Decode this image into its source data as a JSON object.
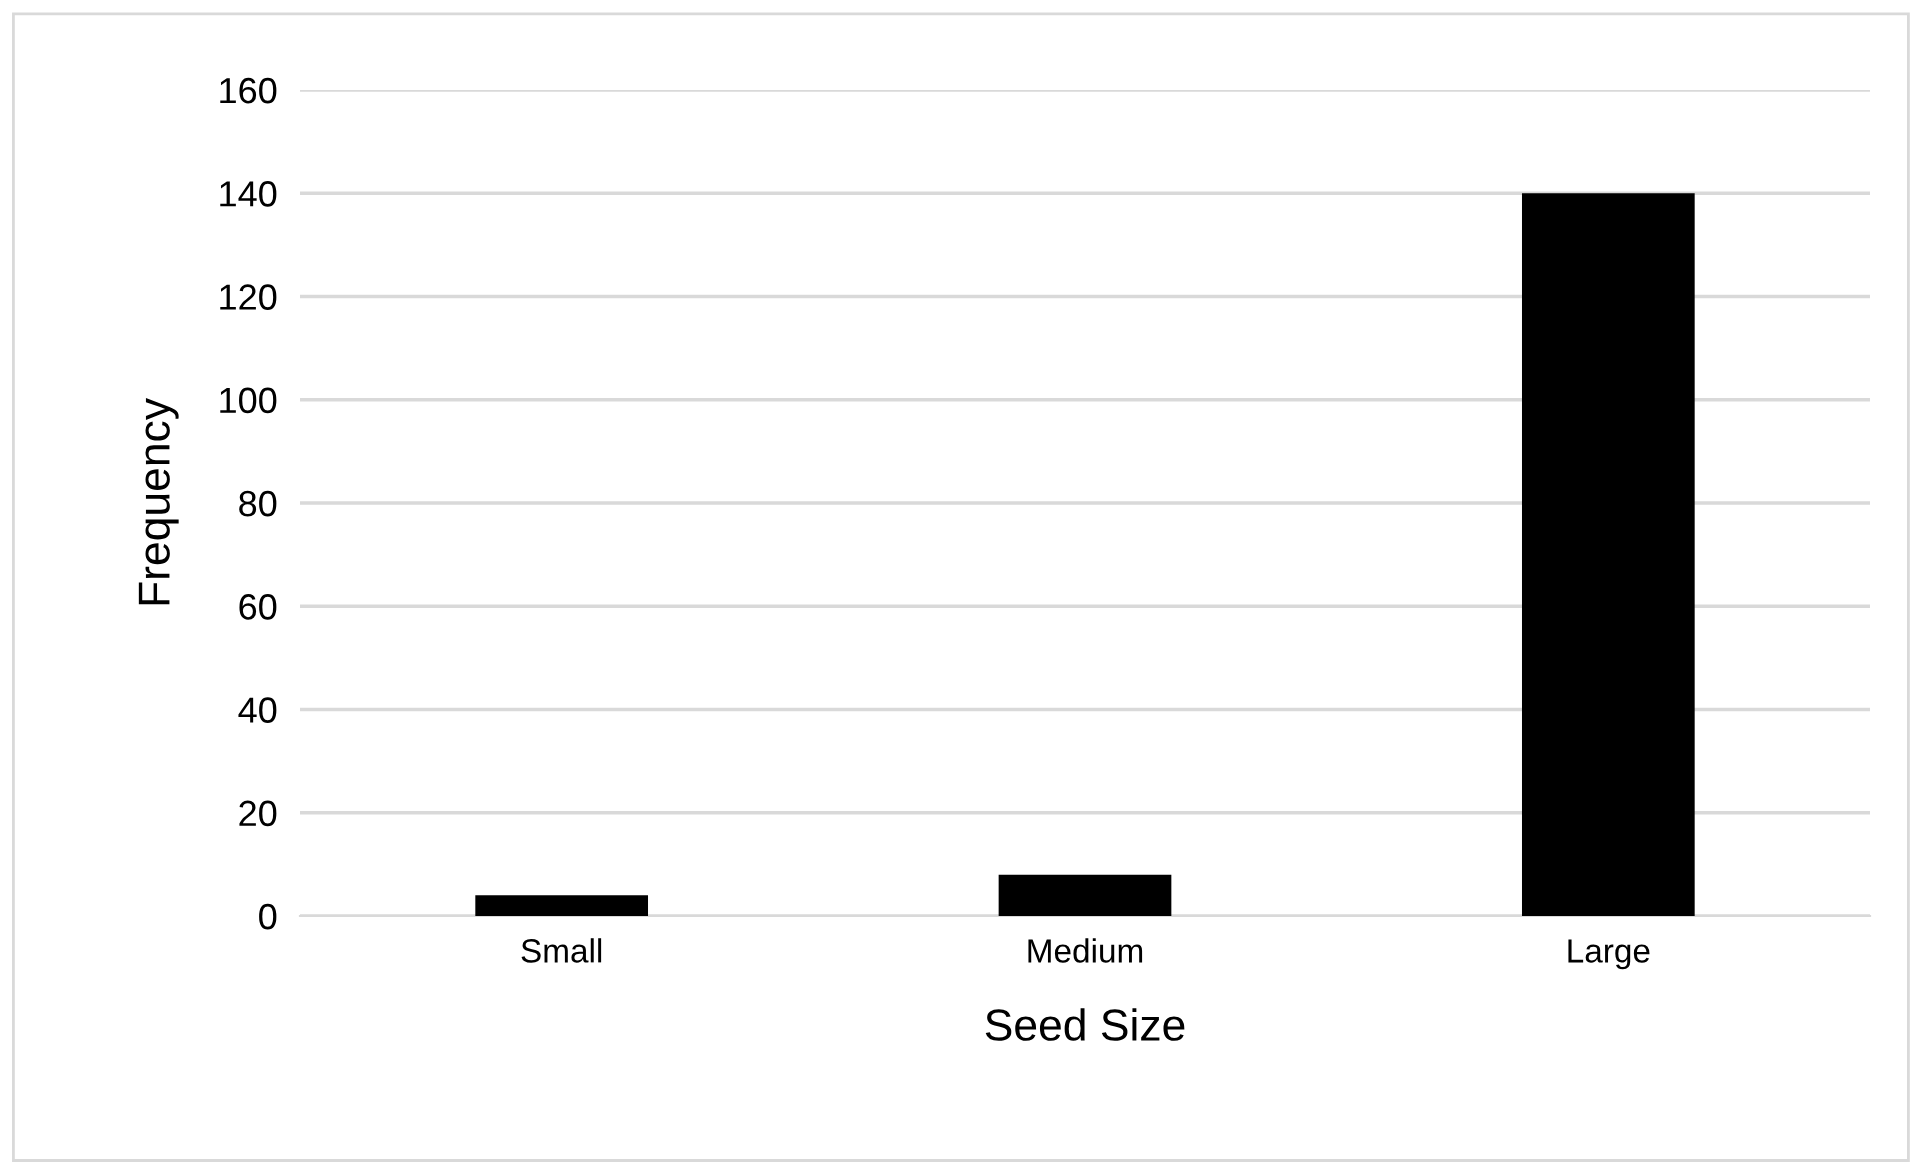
{
  "chart_data": {
    "type": "bar",
    "xlabel": "Seed Size",
    "ylabel": "Frequency",
    "categories": [
      "Small",
      "Medium",
      "Large"
    ],
    "values": [
      4,
      8,
      140
    ],
    "color": "#000000",
    "ylim": [
      0,
      160
    ],
    "yticks": [
      0,
      20,
      40,
      60,
      80,
      100,
      120,
      140,
      160
    ],
    "grid": "y"
  }
}
